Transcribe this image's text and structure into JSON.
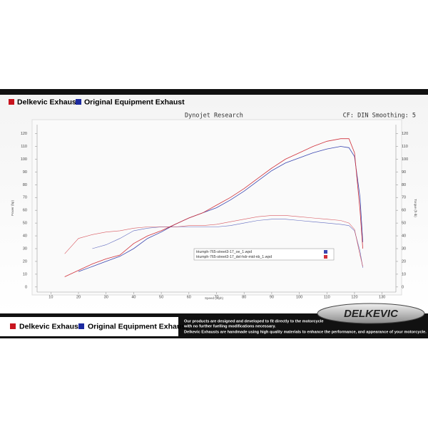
{
  "header": {
    "legend": [
      "Delkevic Exhaust",
      "Original Equipment Exhaust"
    ],
    "legend_colors": [
      "#c8141e",
      "#1c2aa0"
    ]
  },
  "chart_data": {
    "type": "line",
    "title": "Dynojet Research",
    "subtitle": "CF: DIN Smoothing: 5",
    "x_label": "Speed (mph)",
    "y_label": "Power (hp)",
    "y2_label": "Torque (ft-lb)",
    "x": [
      15,
      20,
      25,
      30,
      35,
      40,
      45,
      50,
      55,
      60,
      65,
      70,
      75,
      80,
      85,
      90,
      95,
      100,
      105,
      110,
      115,
      118,
      120,
      122,
      123
    ],
    "series": [
      {
        "name": "triumph-765-street3-17_oe_1.wpd",
        "color": "#3a46b0",
        "values": [
          null,
          12,
          16,
          20,
          24,
          30,
          38,
          43,
          49,
          54,
          58,
          62,
          68,
          75,
          83,
          91,
          97,
          101,
          105,
          108,
          110,
          109,
          102,
          70,
          35
        ],
        "torque": [
          null,
          null,
          30,
          33,
          38,
          44,
          46,
          47,
          47,
          47,
          47,
          47,
          48,
          50,
          52,
          53,
          53,
          52,
          51,
          50,
          49,
          48,
          44,
          28,
          15
        ]
      },
      {
        "name": "triumph-765-street3-17_del-hdr-mid-nb_1.wpd",
        "color": "#d0303a",
        "values": [
          8,
          13,
          18,
          22,
          25,
          34,
          40,
          44,
          49,
          54,
          58,
          64,
          70,
          77,
          85,
          93,
          100,
          105,
          110,
          114,
          116,
          116,
          105,
          60,
          30
        ],
        "torque": [
          26,
          38,
          41,
          43,
          44,
          46,
          47,
          47,
          47,
          48,
          48,
          49,
          51,
          53,
          55,
          56,
          56,
          55,
          54,
          53,
          52,
          50,
          45,
          25,
          16
        ]
      }
    ],
    "xlim": [
      5,
      135
    ],
    "xticks": [
      10,
      20,
      30,
      40,
      50,
      60,
      70,
      80,
      90,
      100,
      110,
      120,
      130
    ],
    "ylim": [
      -4,
      127
    ],
    "yticks": [
      0,
      10,
      20,
      30,
      40,
      50,
      60,
      70,
      80,
      90,
      100,
      110,
      120
    ],
    "y2lim": [
      -4,
      127
    ],
    "y2ticks": [
      0,
      10,
      20,
      30,
      40,
      50,
      60,
      70,
      80,
      90,
      100,
      110,
      120
    ],
    "grid": false,
    "legend": "center-right"
  },
  "footer": {
    "lines": [
      "Our products are designed and developed to fit directly to the motorcycle",
      "with no further fuelling modifications necessary.",
      "Delkevic Exhausts are handmade using high quality materials to enhance the performance, and appearance of your motorcycle."
    ],
    "logo": "DELKEVIC"
  }
}
